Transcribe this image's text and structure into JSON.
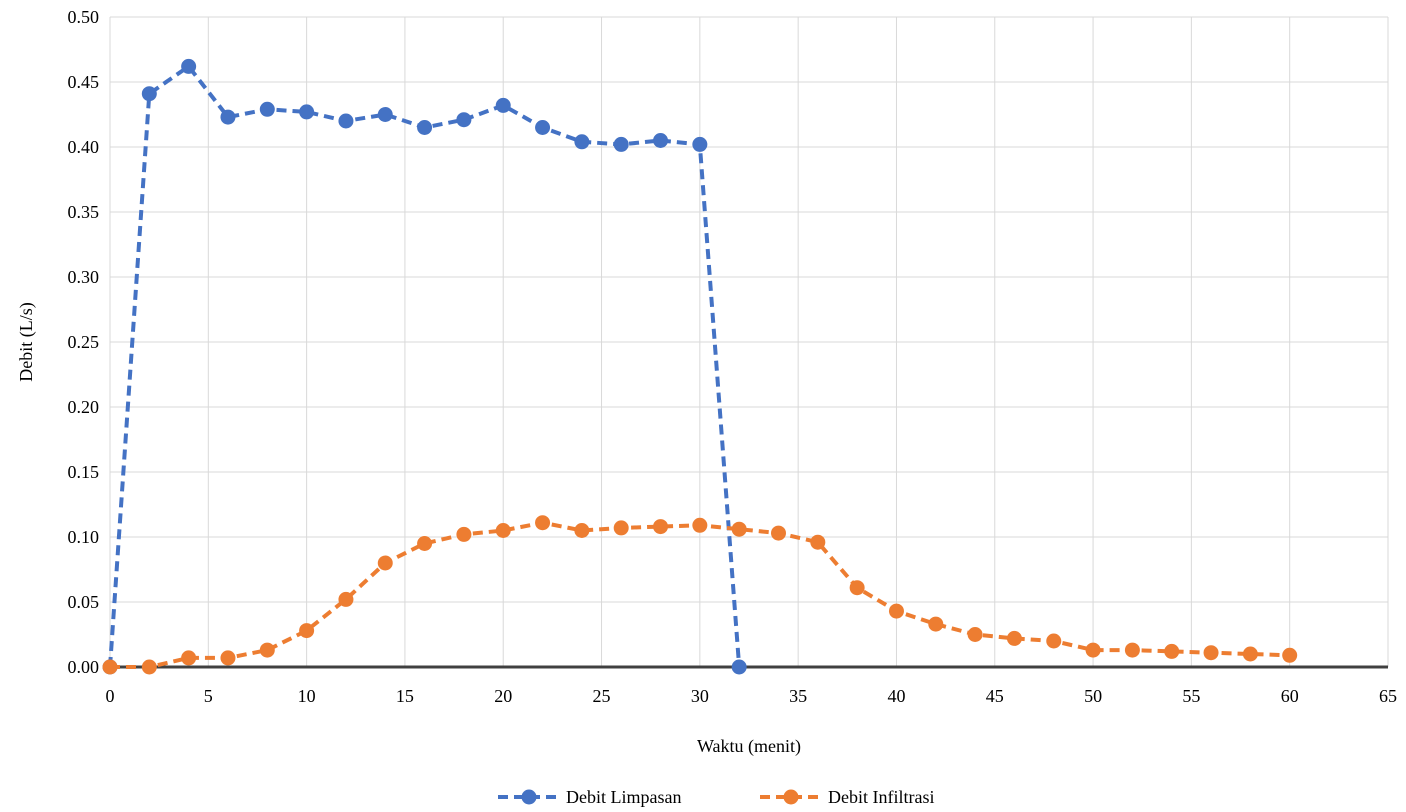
{
  "chart_data": {
    "type": "line",
    "title": "",
    "xlabel": "Waktu (menit)",
    "ylabel": "Debit (L/s)",
    "xlim": [
      0,
      65
    ],
    "ylim": [
      0,
      0.5
    ],
    "xticks": [
      "0",
      "5",
      "10",
      "15",
      "20",
      "25",
      "30",
      "35",
      "40",
      "45",
      "50",
      "55",
      "60",
      "65"
    ],
    "yticks": [
      "0.00",
      "0.05",
      "0.10",
      "0.15",
      "0.20",
      "0.25",
      "0.30",
      "0.35",
      "0.40",
      "0.45",
      "0.50"
    ],
    "grid": true,
    "legend_position": "bottom",
    "line_style": "dashed",
    "marker": "circle",
    "series": [
      {
        "name": "Debit Limpasan",
        "color": "#4472C4",
        "x": [
          0,
          2,
          4,
          6,
          8,
          10,
          12,
          14,
          16,
          18,
          20,
          22,
          24,
          26,
          28,
          30,
          32
        ],
        "y": [
          0.0,
          0.441,
          0.462,
          0.423,
          0.429,
          0.427,
          0.42,
          0.425,
          0.415,
          0.421,
          0.432,
          0.415,
          0.404,
          0.402,
          0.405,
          0.402,
          0.0
        ]
      },
      {
        "name": "Debit Infiltrasi",
        "color": "#ED7D31",
        "x": [
          0,
          2,
          4,
          6,
          8,
          10,
          12,
          14,
          16,
          18,
          20,
          22,
          24,
          26,
          28,
          30,
          32,
          34,
          36,
          38,
          40,
          42,
          44,
          46,
          48,
          50,
          52,
          54,
          56,
          58,
          60
        ],
        "y": [
          0.0,
          0.0,
          0.007,
          0.007,
          0.013,
          0.028,
          0.052,
          0.08,
          0.095,
          0.102,
          0.105,
          0.111,
          0.105,
          0.107,
          0.108,
          0.109,
          0.106,
          0.103,
          0.096,
          0.061,
          0.043,
          0.033,
          0.025,
          0.022,
          0.02,
          0.013,
          0.013,
          0.012,
          0.011,
          0.01,
          0.009
        ]
      }
    ]
  }
}
